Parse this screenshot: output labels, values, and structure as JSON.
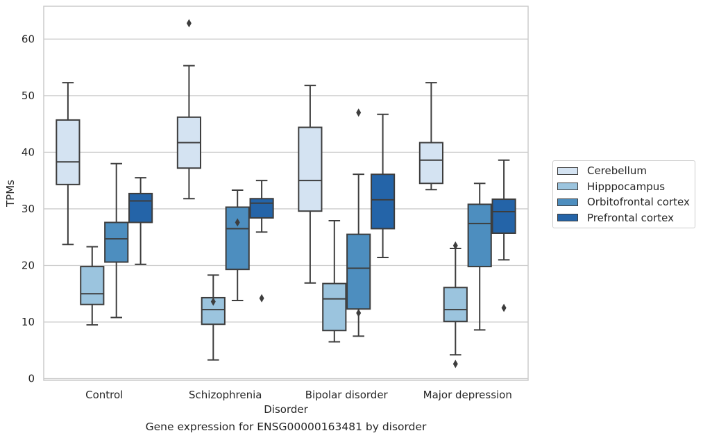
{
  "chart_data": {
    "type": "box",
    "title": "",
    "caption": "Gene expression for ENSG00000163481 by disorder",
    "xlabel": "Disorder",
    "ylabel": "TPMs",
    "ylim": [
      -0.3,
      65.8
    ],
    "yticks": [
      0,
      10,
      20,
      30,
      40,
      50,
      60
    ],
    "grid": true,
    "legend_position": "right",
    "categories": [
      "Control",
      "Schizophrenia",
      "Bipolar disorder",
      "Major depression"
    ],
    "series": [
      {
        "name": "Cerebellum",
        "color": "#d4e3f2",
        "boxes": [
          {
            "whisker_low": 23.7,
            "q1": 34.3,
            "median": 38.3,
            "q3": 45.7,
            "whisker_high": 52.3,
            "outliers": []
          },
          {
            "whisker_low": 31.8,
            "q1": 37.2,
            "median": 41.7,
            "q3": 46.2,
            "whisker_high": 55.3,
            "outliers": [
              62.8
            ]
          },
          {
            "whisker_low": 16.9,
            "q1": 29.6,
            "median": 35.0,
            "q3": 44.4,
            "whisker_high": 51.8,
            "outliers": []
          },
          {
            "whisker_low": 33.4,
            "q1": 34.5,
            "median": 38.6,
            "q3": 41.7,
            "whisker_high": 52.3,
            "outliers": []
          }
        ]
      },
      {
        "name": "Hipppocampus",
        "color": "#9bc4de",
        "boxes": [
          {
            "whisker_low": 9.5,
            "q1": 13.1,
            "median": 15.0,
            "q3": 19.8,
            "whisker_high": 23.3,
            "outliers": []
          },
          {
            "whisker_low": 3.3,
            "q1": 9.6,
            "median": 12.2,
            "q3": 14.3,
            "whisker_high": 18.3,
            "outliers": [
              13.6
            ]
          },
          {
            "whisker_low": 6.5,
            "q1": 8.5,
            "median": 14.1,
            "q3": 16.8,
            "whisker_high": 27.9,
            "outliers": []
          },
          {
            "whisker_low": 4.2,
            "q1": 10.1,
            "median": 12.2,
            "q3": 16.1,
            "whisker_high": 23.0,
            "outliers": [
              2.6,
              23.5
            ]
          }
        ]
      },
      {
        "name": "Orbitofrontal cortex",
        "color": "#4d8ebf",
        "boxes": [
          {
            "whisker_low": 10.8,
            "q1": 20.6,
            "median": 24.7,
            "q3": 27.6,
            "whisker_high": 38.0,
            "outliers": []
          },
          {
            "whisker_low": 13.8,
            "q1": 19.3,
            "median": 26.5,
            "q3": 30.3,
            "whisker_high": 33.3,
            "outliers": [
              27.6
            ]
          },
          {
            "whisker_low": 7.5,
            "q1": 12.3,
            "median": 19.5,
            "q3": 25.5,
            "whisker_high": 36.1,
            "outliers": [
              11.6,
              47.0
            ]
          },
          {
            "whisker_low": 8.6,
            "q1": 19.8,
            "median": 27.4,
            "q3": 30.8,
            "whisker_high": 34.5,
            "outliers": []
          }
        ]
      },
      {
        "name": "Prefrontal cortex",
        "color": "#2464a8",
        "boxes": [
          {
            "whisker_low": 20.2,
            "q1": 27.6,
            "median": 31.4,
            "q3": 32.7,
            "whisker_high": 35.5,
            "outliers": []
          },
          {
            "whisker_low": 25.9,
            "q1": 28.4,
            "median": 31.0,
            "q3": 31.8,
            "whisker_high": 35.0,
            "outliers": [
              14.2
            ]
          },
          {
            "whisker_low": 21.4,
            "q1": 26.5,
            "median": 31.6,
            "q3": 36.1,
            "whisker_high": 46.7,
            "outliers": []
          },
          {
            "whisker_low": 21.0,
            "q1": 25.7,
            "median": 29.5,
            "q3": 31.7,
            "whisker_high": 38.6,
            "outliers": [
              12.5
            ]
          }
        ]
      }
    ]
  }
}
